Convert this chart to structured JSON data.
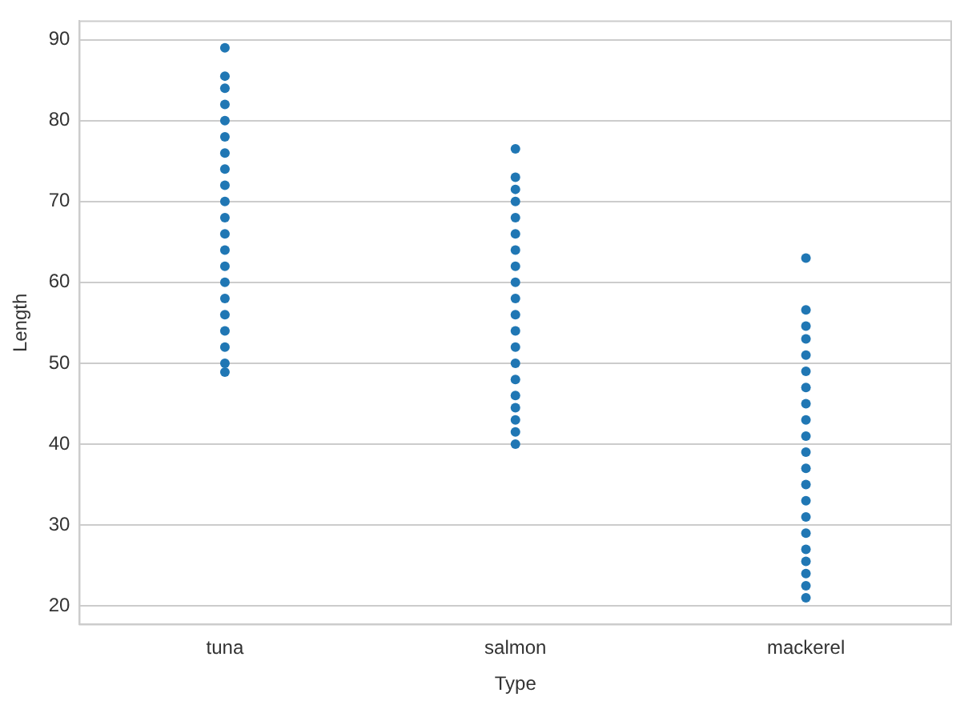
{
  "chart_data": {
    "type": "scatter",
    "xlabel": "Type",
    "ylabel": "Length",
    "categories": [
      "tuna",
      "salmon",
      "mackerel"
    ],
    "ylim": [
      17.7,
      92.3
    ],
    "yticks": [
      20,
      30,
      40,
      50,
      60,
      70,
      80,
      90
    ],
    "grid": "y",
    "legend": false,
    "marker": "circle",
    "series": [
      {
        "color": "#2077b4",
        "x": [
          "tuna",
          "tuna",
          "tuna",
          "tuna",
          "tuna",
          "tuna",
          "tuna",
          "tuna",
          "tuna",
          "tuna",
          "tuna",
          "tuna",
          "tuna",
          "tuna",
          "tuna",
          "tuna",
          "tuna",
          "tuna",
          "tuna",
          "tuna",
          "tuna"
        ],
        "values": [
          89,
          85.5,
          84,
          82,
          80,
          78,
          76,
          74,
          72,
          70,
          68,
          66,
          64,
          62,
          60,
          58,
          56,
          54,
          52,
          50,
          48.9
        ]
      },
      {
        "color": "#2077b4",
        "x": [
          "salmon",
          "salmon",
          "salmon",
          "salmon",
          "salmon",
          "salmon",
          "salmon",
          "salmon",
          "salmon",
          "salmon",
          "salmon",
          "salmon",
          "salmon",
          "salmon",
          "salmon",
          "salmon",
          "salmon",
          "salmon",
          "salmon",
          "salmon"
        ],
        "values": [
          76.5,
          73,
          71.5,
          70,
          68,
          66,
          64,
          62,
          60,
          58,
          56,
          54,
          52,
          50,
          48,
          46,
          44.5,
          43,
          41.5,
          40
        ]
      },
      {
        "color": "#2077b4",
        "x": [
          "mackerel",
          "mackerel",
          "mackerel",
          "mackerel",
          "mackerel",
          "mackerel",
          "mackerel",
          "mackerel",
          "mackerel",
          "mackerel",
          "mackerel",
          "mackerel",
          "mackerel",
          "mackerel",
          "mackerel",
          "mackerel",
          "mackerel",
          "mackerel",
          "mackerel",
          "mackerel",
          "mackerel"
        ],
        "values": [
          63,
          56.6,
          54.6,
          53,
          51,
          49,
          47,
          45,
          43,
          41,
          39,
          37,
          35,
          33,
          31,
          29,
          27,
          25.5,
          24,
          22.5,
          21
        ]
      }
    ]
  }
}
